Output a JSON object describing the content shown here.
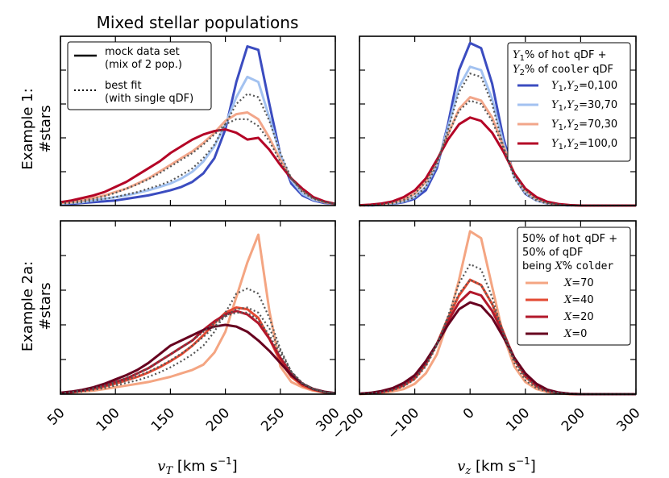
{
  "figure_title": "Mixed stellar populations",
  "chart_data": [
    {
      "id": "top-left",
      "type": "line",
      "row_label_1": "Example 1:",
      "row_label_2": "#stars",
      "xlim": [
        50,
        300
      ],
      "ylim": [
        0,
        1.0
      ],
      "xticks": [
        50,
        100,
        150,
        200,
        250,
        300
      ],
      "x": [
        50,
        60,
        70,
        80,
        90,
        100,
        110,
        120,
        130,
        140,
        150,
        160,
        170,
        180,
        190,
        200,
        210,
        220,
        230,
        240,
        250,
        260,
        270,
        280,
        290,
        300
      ],
      "series": [
        {
          "name": "Y1,Y2=0,100",
          "color": "#3b4cc0",
          "style": "solid",
          "values": [
            0.01,
            0.01,
            0.015,
            0.02,
            0.025,
            0.03,
            0.04,
            0.05,
            0.06,
            0.075,
            0.09,
            0.11,
            0.14,
            0.19,
            0.28,
            0.45,
            0.73,
            0.94,
            0.92,
            0.6,
            0.3,
            0.13,
            0.06,
            0.03,
            0.015,
            0.01
          ]
        },
        {
          "name": "Y1,Y2=30,70",
          "color": "#a3c2f0",
          "style": "solid",
          "values": [
            0.01,
            0.015,
            0.02,
            0.03,
            0.04,
            0.05,
            0.06,
            0.075,
            0.09,
            0.11,
            0.13,
            0.16,
            0.2,
            0.26,
            0.35,
            0.48,
            0.64,
            0.76,
            0.73,
            0.52,
            0.3,
            0.15,
            0.07,
            0.035,
            0.02,
            0.01
          ]
        },
        {
          "name": "Y1,Y2=70,30",
          "color": "#f2a68a",
          "style": "solid",
          "values": [
            0.015,
            0.02,
            0.03,
            0.045,
            0.06,
            0.08,
            0.1,
            0.13,
            0.16,
            0.2,
            0.24,
            0.28,
            0.32,
            0.37,
            0.43,
            0.5,
            0.54,
            0.55,
            0.51,
            0.4,
            0.27,
            0.16,
            0.09,
            0.045,
            0.02,
            0.01
          ]
        },
        {
          "name": "Y1,Y2=100,0",
          "color": "#b40426",
          "style": "solid",
          "values": [
            0.02,
            0.03,
            0.045,
            0.06,
            0.08,
            0.11,
            0.14,
            0.18,
            0.22,
            0.26,
            0.31,
            0.35,
            0.39,
            0.42,
            0.44,
            0.45,
            0.43,
            0.39,
            0.4,
            0.33,
            0.24,
            0.16,
            0.1,
            0.05,
            0.025,
            0.01
          ]
        },
        {
          "name": "fit 30,70",
          "color": "#555555",
          "style": "dotted",
          "values": [
            0.01,
            0.015,
            0.02,
            0.03,
            0.04,
            0.05,
            0.065,
            0.08,
            0.1,
            0.12,
            0.145,
            0.18,
            0.22,
            0.28,
            0.36,
            0.48,
            0.6,
            0.66,
            0.64,
            0.5,
            0.31,
            0.16,
            0.08,
            0.04,
            0.02,
            0.01
          ]
        },
        {
          "name": "fit 70,30",
          "color": "#555555",
          "style": "dotted",
          "values": [
            0.015,
            0.02,
            0.03,
            0.04,
            0.055,
            0.075,
            0.1,
            0.125,
            0.155,
            0.19,
            0.23,
            0.27,
            0.31,
            0.36,
            0.42,
            0.48,
            0.51,
            0.51,
            0.47,
            0.38,
            0.26,
            0.16,
            0.09,
            0.045,
            0.02,
            0.01
          ]
        }
      ]
    },
    {
      "id": "top-right",
      "type": "line",
      "xlim": [
        -200,
        300
      ],
      "ylim": [
        0,
        1.0
      ],
      "xticks": [
        -200,
        -100,
        0,
        100,
        200,
        300
      ],
      "x": [
        -200,
        -180,
        -160,
        -140,
        -120,
        -100,
        -80,
        -60,
        -40,
        -20,
        0,
        20,
        40,
        60,
        80,
        100,
        120,
        140,
        160,
        180,
        200,
        220,
        240,
        260,
        280,
        300
      ],
      "series": [
        {
          "name": "Y1,Y2=0,100",
          "color": "#3b4cc0",
          "style": "solid",
          "values": [
            0.0,
            0.0,
            0.005,
            0.01,
            0.02,
            0.04,
            0.09,
            0.22,
            0.48,
            0.8,
            0.96,
            0.93,
            0.72,
            0.4,
            0.17,
            0.07,
            0.03,
            0.012,
            0.005,
            0.0,
            0.0,
            0.0,
            0.0,
            0.0,
            0.0,
            0.0
          ]
        },
        {
          "name": "Y1,Y2=30,70",
          "color": "#a3c2f0",
          "style": "solid",
          "values": [
            0.0,
            0.0,
            0.005,
            0.012,
            0.025,
            0.05,
            0.11,
            0.24,
            0.46,
            0.7,
            0.82,
            0.8,
            0.63,
            0.37,
            0.17,
            0.075,
            0.03,
            0.012,
            0.005,
            0.0,
            0.0,
            0.0,
            0.0,
            0.0,
            0.0,
            0.0
          ]
        },
        {
          "name": "Y1,Y2=70,30",
          "color": "#f2a68a",
          "style": "solid",
          "values": [
            0.0,
            0.003,
            0.008,
            0.018,
            0.035,
            0.07,
            0.14,
            0.26,
            0.42,
            0.57,
            0.64,
            0.62,
            0.52,
            0.35,
            0.19,
            0.09,
            0.04,
            0.016,
            0.006,
            0.002,
            0.0,
            0.0,
            0.0,
            0.0,
            0.0,
            0.0
          ]
        },
        {
          "name": "Y1,Y2=100,0",
          "color": "#b40426",
          "style": "solid",
          "values": [
            0.002,
            0.005,
            0.012,
            0.025,
            0.05,
            0.09,
            0.16,
            0.27,
            0.39,
            0.48,
            0.52,
            0.5,
            0.43,
            0.32,
            0.19,
            0.1,
            0.05,
            0.022,
            0.009,
            0.003,
            0.0,
            0.0,
            0.0,
            0.0,
            0.0,
            0.0
          ]
        },
        {
          "name": "fit 30,70",
          "color": "#555555",
          "style": "dotted",
          "values": [
            0.0,
            0.0,
            0.005,
            0.012,
            0.025,
            0.05,
            0.11,
            0.24,
            0.45,
            0.67,
            0.78,
            0.76,
            0.6,
            0.35,
            0.16,
            0.07,
            0.03,
            0.012,
            0.005,
            0.0,
            0.0,
            0.0,
            0.0,
            0.0,
            0.0,
            0.0
          ]
        },
        {
          "name": "fit 70,30",
          "color": "#555555",
          "style": "dotted",
          "values": [
            0.0,
            0.003,
            0.008,
            0.018,
            0.035,
            0.07,
            0.14,
            0.26,
            0.42,
            0.56,
            0.62,
            0.6,
            0.5,
            0.34,
            0.18,
            0.09,
            0.04,
            0.016,
            0.006,
            0.002,
            0.0,
            0.0,
            0.0,
            0.0,
            0.0,
            0.0
          ]
        }
      ]
    },
    {
      "id": "bottom-left",
      "type": "line",
      "row_label_1": "Example 2a:",
      "row_label_2": "#stars",
      "xlabel_var": "v",
      "xlabel_sub": "T",
      "xlabel_unit": " [km s",
      "xlabel_exp": "−1",
      "xlabel_close": "]",
      "xlim": [
        50,
        300
      ],
      "ylim": [
        0,
        1.0
      ],
      "xticks": [
        50,
        100,
        150,
        200,
        250,
        300
      ],
      "xticklabels": [
        "50",
        "100",
        "150",
        "200",
        "250",
        "300"
      ],
      "x": [
        50,
        60,
        70,
        80,
        90,
        100,
        110,
        120,
        130,
        140,
        150,
        160,
        170,
        180,
        190,
        200,
        210,
        220,
        230,
        240,
        250,
        260,
        270,
        280,
        290,
        300
      ],
      "series": [
        {
          "name": "X=70",
          "color": "#f4a582",
          "style": "solid",
          "values": [
            0.005,
            0.01,
            0.015,
            0.02,
            0.03,
            0.04,
            0.05,
            0.06,
            0.07,
            0.085,
            0.1,
            0.12,
            0.14,
            0.17,
            0.24,
            0.36,
            0.56,
            0.76,
            0.92,
            0.48,
            0.16,
            0.07,
            0.04,
            0.02,
            0.01,
            0.005
          ]
        },
        {
          "name": "X=40",
          "color": "#e34a33",
          "style": "solid",
          "values": [
            0.005,
            0.01,
            0.02,
            0.03,
            0.045,
            0.06,
            0.08,
            0.1,
            0.125,
            0.155,
            0.19,
            0.23,
            0.28,
            0.34,
            0.41,
            0.47,
            0.5,
            0.49,
            0.44,
            0.32,
            0.19,
            0.1,
            0.05,
            0.025,
            0.01,
            0.005
          ]
        },
        {
          "name": "X=20",
          "color": "#b2182b",
          "style": "solid",
          "values": [
            0.005,
            0.012,
            0.022,
            0.035,
            0.05,
            0.07,
            0.09,
            0.12,
            0.15,
            0.19,
            0.23,
            0.27,
            0.31,
            0.37,
            0.42,
            0.46,
            0.48,
            0.46,
            0.41,
            0.32,
            0.21,
            0.12,
            0.06,
            0.03,
            0.012,
            0.005
          ]
        },
        {
          "name": "X=0",
          "color": "#67001f",
          "style": "solid",
          "values": [
            0.008,
            0.015,
            0.025,
            0.04,
            0.06,
            0.085,
            0.11,
            0.14,
            0.18,
            0.23,
            0.28,
            0.31,
            0.34,
            0.37,
            0.39,
            0.4,
            0.39,
            0.36,
            0.31,
            0.25,
            0.18,
            0.11,
            0.06,
            0.03,
            0.014,
            0.006
          ]
        },
        {
          "name": "fit X=70",
          "color": "#555555",
          "style": "dotted",
          "values": [
            0.005,
            0.01,
            0.015,
            0.025,
            0.035,
            0.05,
            0.065,
            0.08,
            0.1,
            0.125,
            0.155,
            0.19,
            0.23,
            0.28,
            0.36,
            0.47,
            0.58,
            0.61,
            0.58,
            0.44,
            0.26,
            0.13,
            0.06,
            0.03,
            0.012,
            0.005
          ]
        },
        {
          "name": "fit X=40",
          "color": "#555555",
          "style": "dotted",
          "values": [
            0.005,
            0.01,
            0.02,
            0.03,
            0.045,
            0.06,
            0.08,
            0.105,
            0.13,
            0.16,
            0.195,
            0.235,
            0.28,
            0.33,
            0.39,
            0.45,
            0.49,
            0.5,
            0.47,
            0.38,
            0.25,
            0.13,
            0.065,
            0.03,
            0.012,
            0.005
          ]
        },
        {
          "name": "fit X=20",
          "color": "#555555",
          "style": "dotted",
          "values": [
            0.005,
            0.012,
            0.022,
            0.035,
            0.05,
            0.07,
            0.095,
            0.12,
            0.15,
            0.19,
            0.23,
            0.27,
            0.31,
            0.36,
            0.41,
            0.45,
            0.47,
            0.47,
            0.43,
            0.34,
            0.23,
            0.13,
            0.065,
            0.03,
            0.012,
            0.005
          ]
        }
      ]
    },
    {
      "id": "bottom-right",
      "type": "line",
      "xlabel_var": "v",
      "xlabel_sub": "z",
      "xlabel_unit": " [km s",
      "xlabel_exp": "−1",
      "xlabel_close": "]",
      "xlim": [
        -200,
        300
      ],
      "ylim": [
        0,
        1.0
      ],
      "xticks": [
        -200,
        -100,
        0,
        100,
        200,
        300
      ],
      "xticklabels": [
        "−200",
        "−100",
        "0",
        "100",
        "200",
        "300"
      ],
      "x": [
        -200,
        -180,
        -160,
        -140,
        -120,
        -100,
        -80,
        -60,
        -40,
        -20,
        0,
        20,
        40,
        60,
        80,
        100,
        120,
        140,
        160,
        180,
        200,
        220,
        240,
        260,
        280,
        300
      ],
      "series": [
        {
          "name": "X=70",
          "color": "#f4a582",
          "style": "solid",
          "values": [
            0.0,
            0.003,
            0.008,
            0.016,
            0.03,
            0.06,
            0.12,
            0.23,
            0.42,
            0.66,
            0.94,
            0.9,
            0.62,
            0.34,
            0.16,
            0.07,
            0.03,
            0.012,
            0.004,
            0.0,
            0.0,
            0.0,
            0.0,
            0.0,
            0.0,
            0.0
          ]
        },
        {
          "name": "X=40",
          "color": "#e34a33",
          "style": "solid",
          "values": [
            0.002,
            0.005,
            0.012,
            0.025,
            0.05,
            0.09,
            0.17,
            0.29,
            0.44,
            0.57,
            0.66,
            0.63,
            0.52,
            0.36,
            0.2,
            0.1,
            0.045,
            0.018,
            0.007,
            0.002,
            0.0,
            0.0,
            0.0,
            0.0,
            0.0,
            0.0
          ]
        },
        {
          "name": "X=20",
          "color": "#b2182b",
          "style": "solid",
          "values": [
            0.002,
            0.006,
            0.014,
            0.03,
            0.055,
            0.1,
            0.18,
            0.29,
            0.42,
            0.53,
            0.59,
            0.57,
            0.48,
            0.35,
            0.21,
            0.11,
            0.05,
            0.02,
            0.008,
            0.002,
            0.0,
            0.0,
            0.0,
            0.0,
            0.0,
            0.0
          ]
        },
        {
          "name": "X=0",
          "color": "#67001f",
          "style": "solid",
          "values": [
            0.003,
            0.008,
            0.018,
            0.035,
            0.065,
            0.11,
            0.19,
            0.29,
            0.4,
            0.49,
            0.53,
            0.51,
            0.44,
            0.33,
            0.21,
            0.12,
            0.06,
            0.026,
            0.01,
            0.003,
            0.0,
            0.0,
            0.0,
            0.0,
            0.0,
            0.0
          ]
        },
        {
          "name": "fit X=70",
          "color": "#555555",
          "style": "dotted",
          "values": [
            0.001,
            0.004,
            0.01,
            0.022,
            0.045,
            0.085,
            0.16,
            0.28,
            0.45,
            0.64,
            0.75,
            0.72,
            0.56,
            0.35,
            0.18,
            0.08,
            0.035,
            0.014,
            0.005,
            0.001,
            0.0,
            0.0,
            0.0,
            0.0,
            0.0,
            0.0
          ]
        },
        {
          "name": "fit X=40",
          "color": "#555555",
          "style": "dotted",
          "values": [
            0.002,
            0.005,
            0.012,
            0.026,
            0.052,
            0.095,
            0.17,
            0.29,
            0.44,
            0.58,
            0.66,
            0.63,
            0.52,
            0.36,
            0.2,
            0.1,
            0.045,
            0.018,
            0.007,
            0.002,
            0.0,
            0.0,
            0.0,
            0.0,
            0.0,
            0.0
          ]
        }
      ]
    }
  ],
  "legend_top_left": {
    "items": [
      {
        "label1": "mock data set",
        "label2": "(mix of 2 pop.)",
        "style": "solid",
        "color": "#000000"
      },
      {
        "label1": "best fit",
        "label2": "(with single qDF)",
        "style": "dotted",
        "color": "#000000"
      }
    ]
  },
  "legend_top_right": {
    "h1_pre": "Y",
    "h1_sub": "1",
    "h1_mid": "% of ",
    "h1_mono": "hot",
    "h1_post": " qDF +",
    "h2_pre": "Y",
    "h2_sub": "2",
    "h2_mid": "% of ",
    "h2_mono": "cooler",
    "h2_post": " qDF",
    "items": [
      {
        "color": "#3b4cc0",
        "vals": "=0,100"
      },
      {
        "color": "#a3c2f0",
        "vals": "=30,70"
      },
      {
        "color": "#f2a68a",
        "vals": "=70,30"
      },
      {
        "color": "#b40426",
        "vals": "=100,0"
      }
    ]
  },
  "legend_bottom_right": {
    "h1_pct": "50",
    "h1_mid": "% of ",
    "h1_mono": "hot",
    "h1_post": " qDF +",
    "h2_pct": "50",
    "h2_post": "% of qDF",
    "h3_pre": "being ",
    "h3_var": "X",
    "h3_mid": "% ",
    "h3_mono": "colder",
    "items": [
      {
        "color": "#f4a582",
        "vals": "=70"
      },
      {
        "color": "#e34a33",
        "vals": "=40"
      },
      {
        "color": "#b2182b",
        "vals": "=20"
      },
      {
        "color": "#67001f",
        "vals": "=0"
      }
    ]
  }
}
